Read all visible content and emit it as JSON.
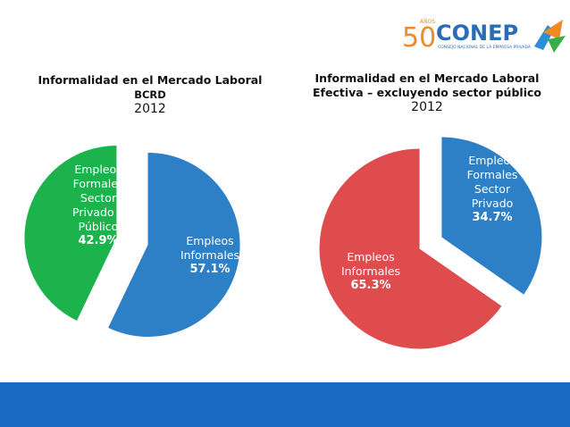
{
  "logo": {
    "anniversary": "50",
    "years": "AÑOS",
    "name": "CONEP",
    "tagline": "CONSEJO NACIONAL DE LA EMPRESA PRIVADA"
  },
  "chart_data": [
    {
      "type": "pie",
      "title": "Informalidad en el Mercado Laboral",
      "subtitle": "BCRD",
      "year": "2012",
      "categories": [
        "Empleos Informales",
        "Empleos Formales Sector Privado y Público"
      ],
      "values": [
        57.1,
        42.9
      ],
      "value_labels": [
        "57.1%",
        "42.9%"
      ],
      "colors": [
        "#2e80c6",
        "#1db34c"
      ],
      "exploded": true
    },
    {
      "type": "pie",
      "title": "Informalidad en el Mercado Laboral",
      "subtitle": "Efectiva – excluyendo sector público",
      "year": "2012",
      "categories": [
        "Empleos Formales Sector Privado",
        "Empleos Informales"
      ],
      "values": [
        34.7,
        65.3
      ],
      "value_labels": [
        "34.7%",
        "65.3%"
      ],
      "colors": [
        "#2e80c6",
        "#de4c4e"
      ],
      "exploded": true
    }
  ]
}
